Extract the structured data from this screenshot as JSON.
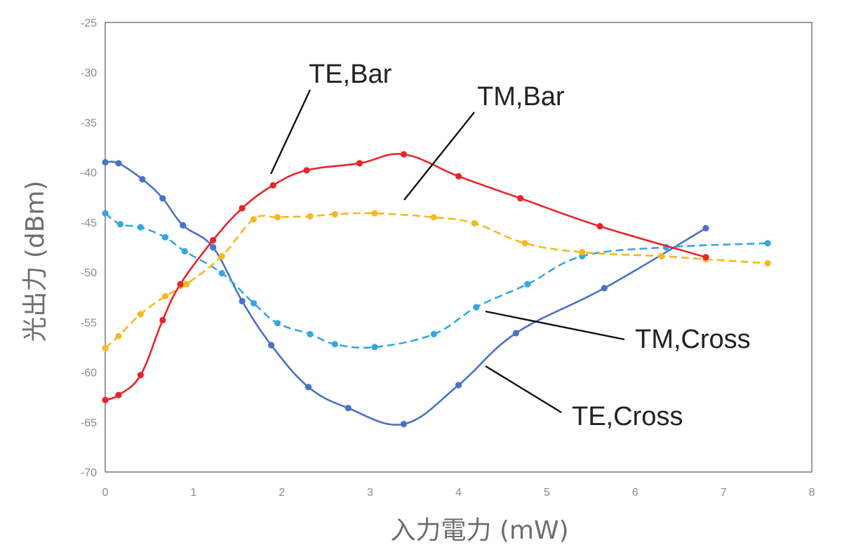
{
  "chart_data": {
    "type": "line",
    "xlabel": "入力電力 (mW)",
    "ylabel": "光出力 (dBm)",
    "xlim": [
      0,
      8
    ],
    "ylim": [
      -70,
      -25
    ],
    "xticks": [
      "0",
      "1",
      "2",
      "3",
      "4",
      "5",
      "6",
      "7",
      "8"
    ],
    "yticks": [
      "-25",
      "-30",
      "-35",
      "-40",
      "-45",
      "-50",
      "-55",
      "-60",
      "-65",
      "-70"
    ],
    "grid": false,
    "series": [
      {
        "name": "TE,Bar",
        "color": "#e8242a",
        "dashed": false,
        "x": [
          0,
          0.15,
          0.4,
          0.65,
          0.85,
          1.22,
          1.55,
          1.9,
          2.28,
          2.88,
          3.38,
          4.0,
          4.7,
          5.6,
          6.8
        ],
        "y": [
          -62.8,
          -62.3,
          -60.3,
          -54.8,
          -51.2,
          -46.8,
          -43.6,
          -41.3,
          -39.8,
          -39.1,
          -38.2,
          -40.4,
          -42.6,
          -45.4,
          -48.5
        ]
      },
      {
        "name": "TM,Bar",
        "color": "#f5b820",
        "dashed": true,
        "x": [
          0,
          0.15,
          0.4,
          0.68,
          0.92,
          1.32,
          1.68,
          1.95,
          2.32,
          2.6,
          3.05,
          3.72,
          4.18,
          4.75,
          5.4,
          6.3,
          6.8,
          7.5
        ],
        "y": [
          -57.6,
          -56.4,
          -54.2,
          -52.4,
          -51.2,
          -48.4,
          -44.7,
          -44.5,
          -44.4,
          -44.2,
          -44.1,
          -44.5,
          -45.1,
          -47.1,
          -48.0,
          -48.4,
          -48.7,
          -49.1
        ]
      },
      {
        "name": "TE,Cross",
        "color": "#4a70c8",
        "dashed": false,
        "x": [
          0,
          0.15,
          0.42,
          0.65,
          0.88,
          1.22,
          1.55,
          1.88,
          2.3,
          2.75,
          3.38,
          4.0,
          4.65,
          5.65,
          6.8
        ],
        "y": [
          -39.0,
          -39.1,
          -40.7,
          -42.6,
          -45.3,
          -47.5,
          -52.9,
          -57.3,
          -61.5,
          -63.6,
          -65.2,
          -61.3,
          -56.1,
          -51.6,
          -45.6
        ]
      },
      {
        "name": "TM,Cross",
        "color": "#36a6e2",
        "dashed": true,
        "x": [
          0,
          0.17,
          0.4,
          0.68,
          0.9,
          1.32,
          1.68,
          1.95,
          2.32,
          2.6,
          3.05,
          3.72,
          4.2,
          4.78,
          5.4,
          6.35,
          7.5
        ],
        "y": [
          -44.1,
          -45.2,
          -45.5,
          -46.5,
          -47.9,
          -50.1,
          -53.1,
          -55.1,
          -56.2,
          -57.2,
          -57.5,
          -56.2,
          -53.5,
          -51.2,
          -48.4,
          -47.5,
          -47.1
        ]
      }
    ],
    "annotations": [
      {
        "text": "TE,Bar",
        "series": "TE,Bar"
      },
      {
        "text": "TM,Bar",
        "series": "TM,Bar"
      },
      {
        "text": "TM,Cross",
        "series": "TM,Cross"
      },
      {
        "text": "TE,Cross",
        "series": "TE,Cross"
      }
    ]
  }
}
